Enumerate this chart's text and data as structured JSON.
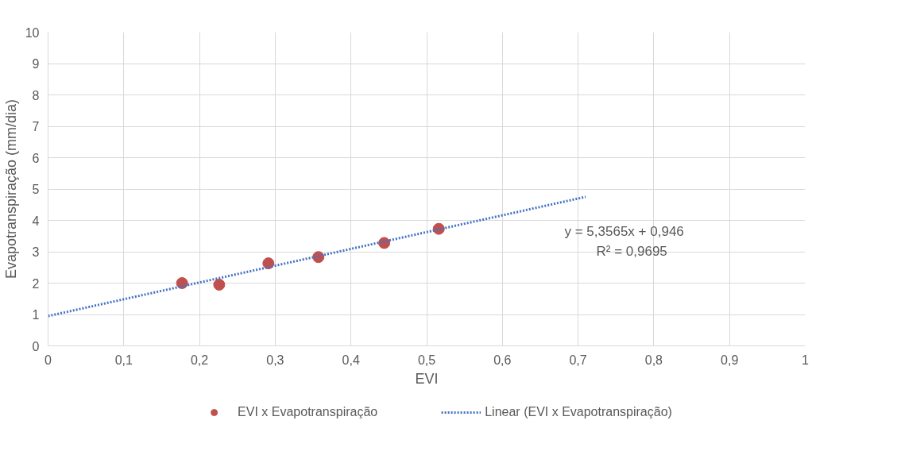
{
  "chart_data": {
    "type": "scatter",
    "xlabel": "EVI",
    "ylabel": "Evapotranspiração (mm/dia)",
    "xlim": [
      0,
      1
    ],
    "ylim": [
      0,
      10
    ],
    "xticks": [
      0,
      {
        "value": 0.1,
        "label": "0,1"
      },
      {
        "value": 0.2,
        "label": "0,2"
      },
      {
        "value": 0.3,
        "label": "0,3"
      },
      {
        "value": 0.4,
        "label": "0,4"
      },
      {
        "value": 0.5,
        "label": "0,5"
      },
      {
        "value": 0.6,
        "label": "0,6"
      },
      {
        "value": 0.7,
        "label": "0,7"
      },
      {
        "value": 0.8,
        "label": "0,8"
      },
      {
        "value": 0.9,
        "label": "0,9"
      },
      1
    ],
    "yticks": [
      0,
      1,
      2,
      3,
      4,
      5,
      6,
      7,
      8,
      9,
      10
    ],
    "series": [
      {
        "name": "EVI x Evapotranspiração",
        "color": "#c0504d",
        "marker": "circle",
        "x": [
          0.177,
          0.226,
          0.291,
          0.357,
          0.444,
          0.516
        ],
        "values": [
          2.0,
          1.95,
          2.63,
          2.83,
          3.28,
          3.73
        ]
      },
      {
        "name": "Linear (EVI x Evapotranspiração)",
        "type": "line",
        "color": "#4472c4",
        "line_style": "dotted",
        "x": [
          0,
          0.71
        ],
        "values": [
          0.95,
          4.75
        ]
      }
    ],
    "annotations": [
      "y = 5,3565x + 0,946",
      "R² = 0,9695"
    ],
    "grid": true,
    "legend": "bottom"
  }
}
